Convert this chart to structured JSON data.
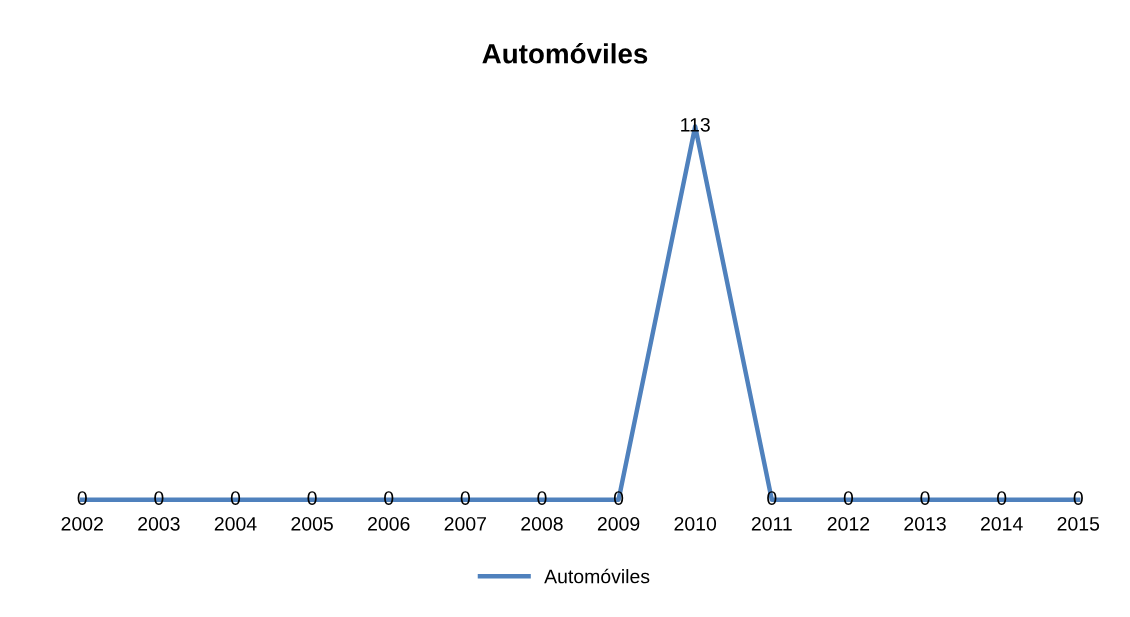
{
  "chart_data": {
    "type": "line",
    "title": "Automóviles",
    "categories": [
      "2002",
      "2003",
      "2004",
      "2005",
      "2006",
      "2007",
      "2008",
      "2009",
      "2010",
      "2011",
      "2012",
      "2013",
      "2014",
      "2015"
    ],
    "series": [
      {
        "name": "Automóviles",
        "color": "#4f81bd",
        "values": [
          0,
          0,
          0,
          0,
          0,
          0,
          0,
          0,
          113,
          0,
          0,
          0,
          0,
          0
        ]
      }
    ],
    "data_labels": true,
    "legend": "bottom",
    "grid": false,
    "marker": "none",
    "line_style": "solid"
  }
}
